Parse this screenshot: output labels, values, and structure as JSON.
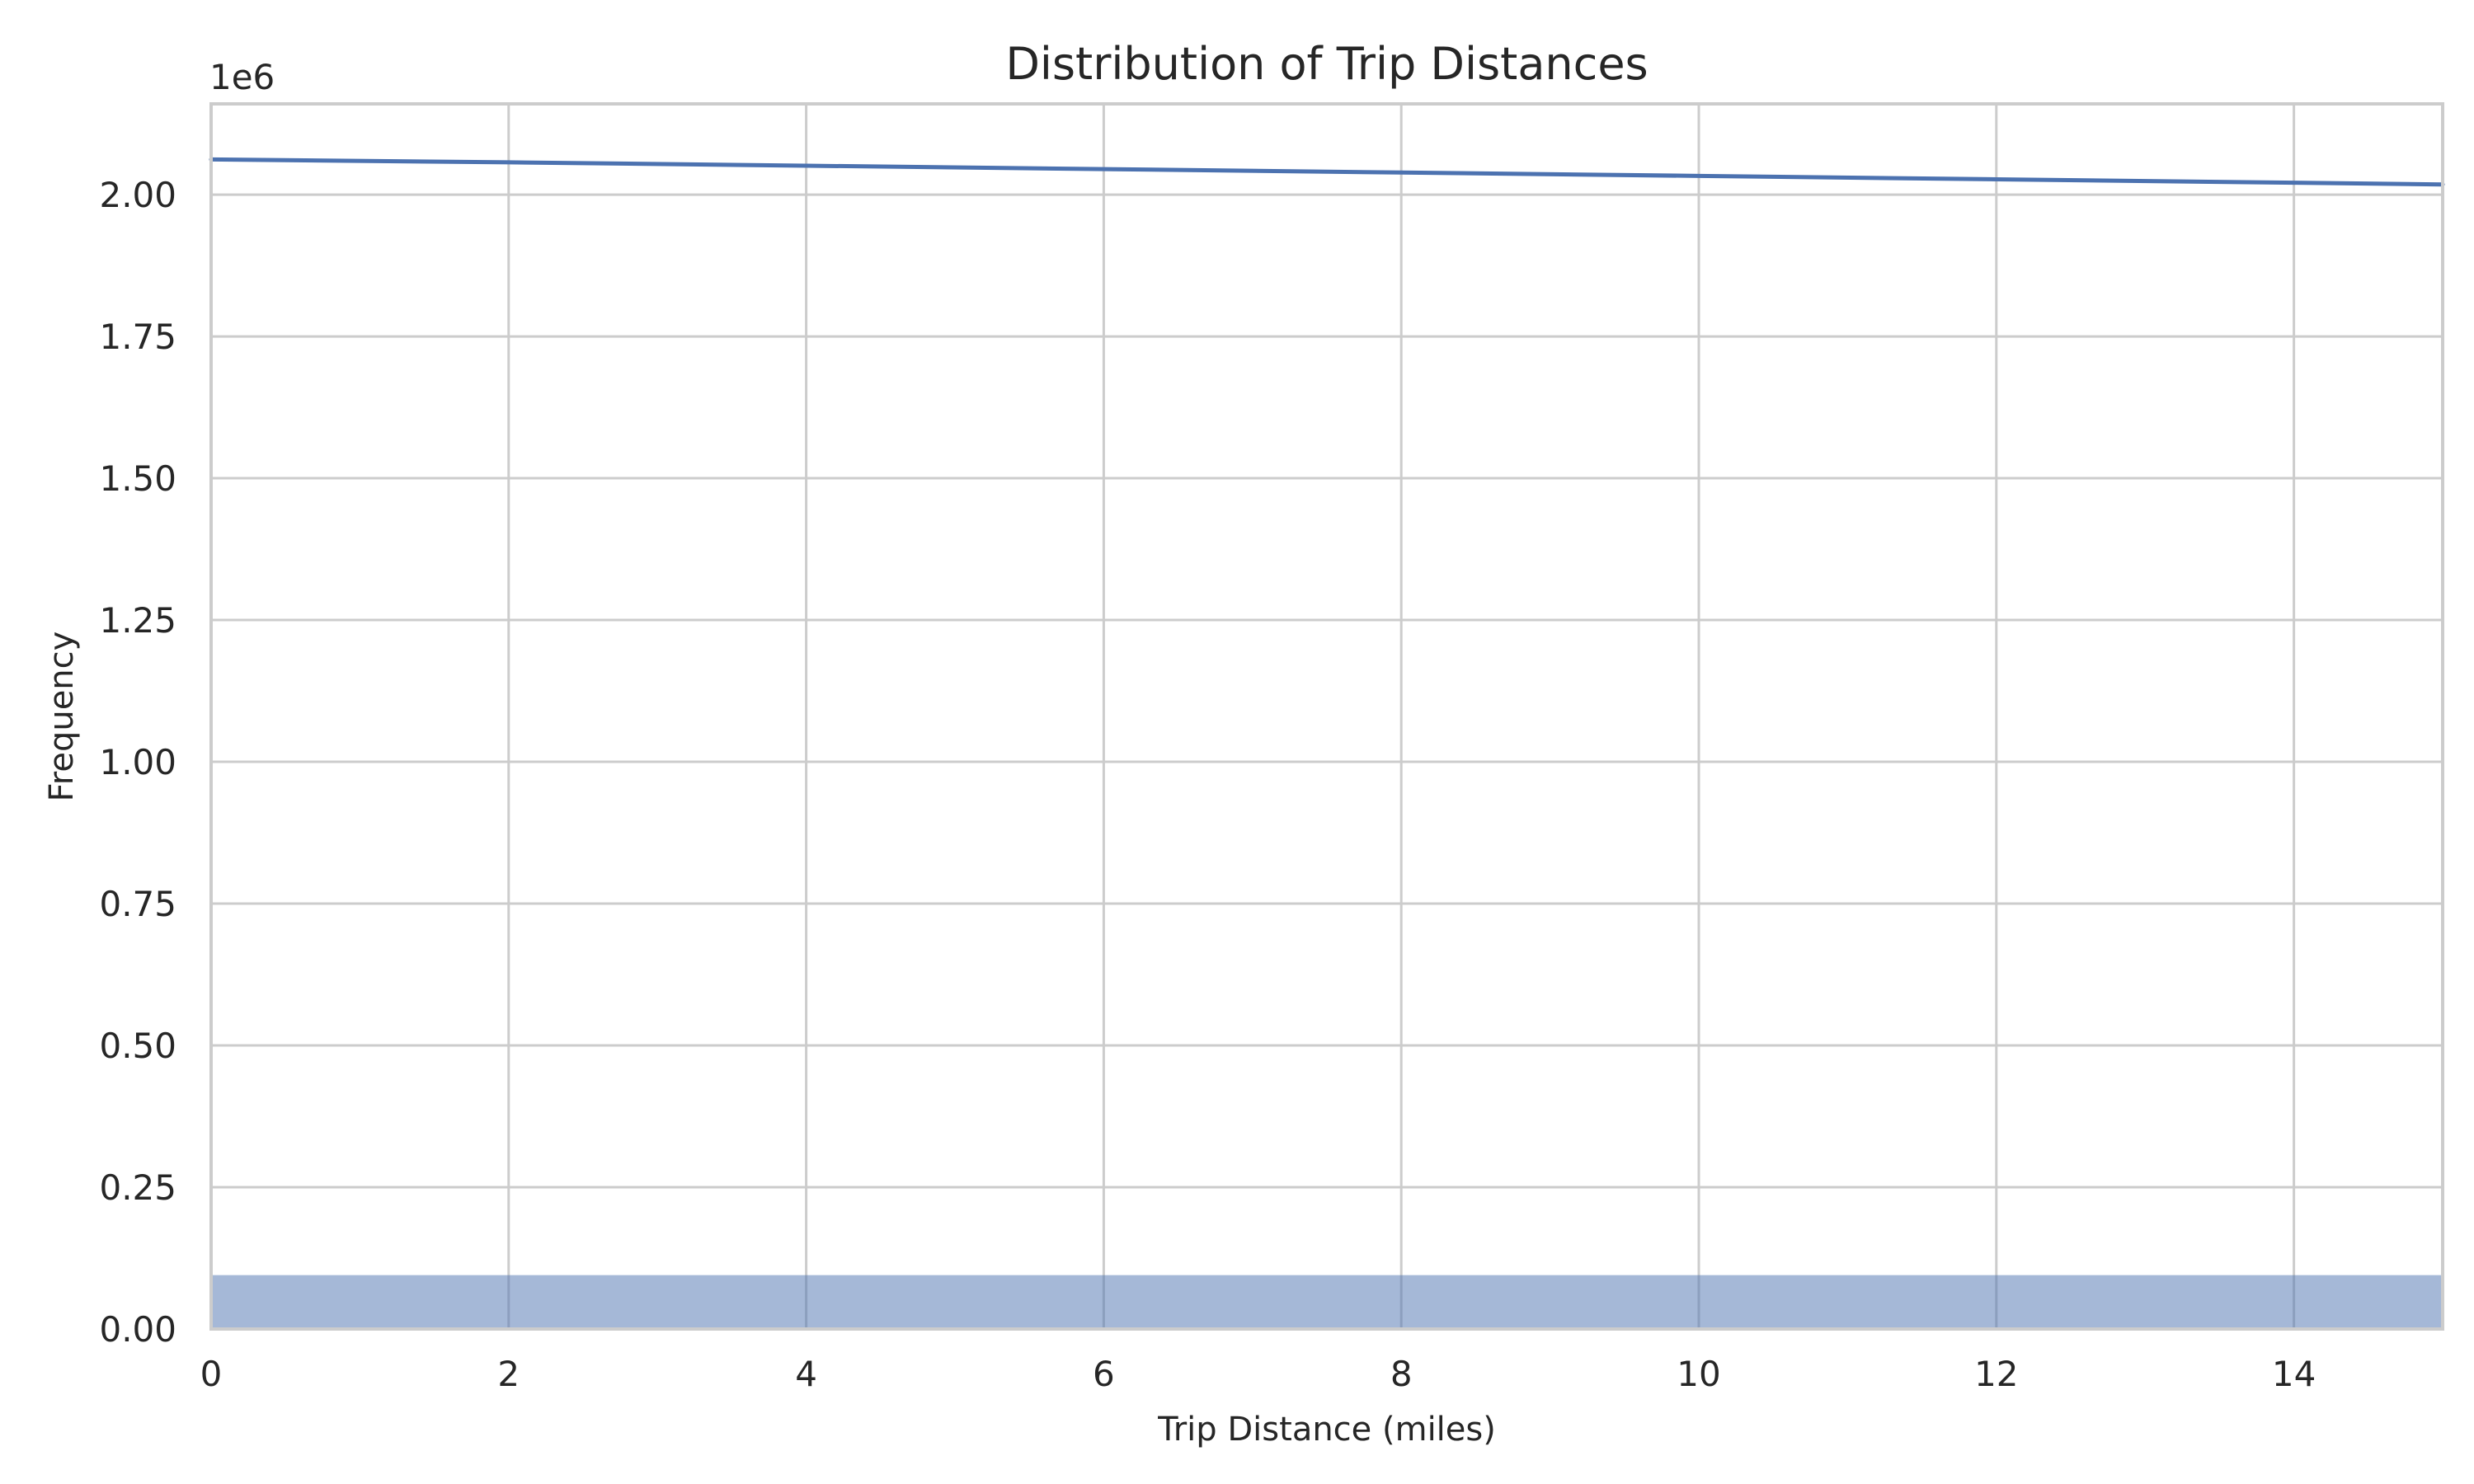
{
  "chart_data": {
    "type": "bar",
    "title": "Distribution of Trip Distances",
    "xlabel": "Trip Distance (miles)",
    "ylabel": "Frequency",
    "y_offset_label": "1e6",
    "xlim": [
      0,
      15
    ],
    "ylim": [
      0,
      2.16
    ],
    "x_ticks": [
      "0",
      "2",
      "4",
      "6",
      "8",
      "10",
      "12",
      "14"
    ],
    "x_tick_values": [
      0,
      2,
      4,
      6,
      8,
      10,
      12,
      14
    ],
    "y_ticks": [
      "0.00",
      "0.25",
      "0.50",
      "0.75",
      "1.00",
      "1.25",
      "1.50",
      "1.75",
      "2.00"
    ],
    "y_tick_values": [
      0,
      0.25,
      0.5,
      0.75,
      1.0,
      1.25,
      1.5,
      1.75,
      2.0
    ],
    "bars": [
      {
        "x0": 0,
        "x1": 15,
        "value": 0.095
      }
    ],
    "kde_line": {
      "x": [
        0,
        2,
        4,
        6,
        8,
        10,
        12,
        14,
        15
      ],
      "y": [
        2.062,
        2.057,
        2.051,
        2.045,
        2.039,
        2.033,
        2.027,
        2.021,
        2.018
      ]
    },
    "grid": true,
    "colors": {
      "bar_fill": "#4c72b0",
      "line": "#4c72b0",
      "grid": "#cccccc",
      "text": "#262626"
    }
  }
}
